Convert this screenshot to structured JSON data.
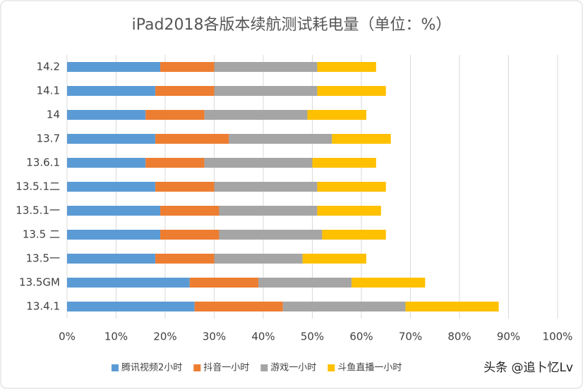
{
  "chart_data": {
    "type": "stacked-bar-horizontal",
    "title": "iPad2018各版本续航测试耗电量（单位：%）",
    "categories": [
      "14.2",
      "14.1",
      "14",
      "13.7",
      "13.6.1",
      "13.5.1二",
      "13.5.1一",
      "13.5 二",
      "13.5一",
      "13.5GM",
      "13.4.1"
    ],
    "series": [
      {
        "name": "腾讯视频2小时",
        "color": "#5b9bd5",
        "values": [
          19,
          18,
          16,
          18,
          16,
          18,
          19,
          19,
          18,
          25,
          26
        ]
      },
      {
        "name": "抖音一小时",
        "color": "#ed7d31",
        "values": [
          11,
          12,
          12,
          15,
          12,
          12,
          12,
          12,
          12,
          14,
          18
        ]
      },
      {
        "name": "游戏一小时",
        "color": "#a5a5a5",
        "values": [
          21,
          21,
          21,
          21,
          22,
          21,
          20,
          21,
          18,
          19,
          25
        ]
      },
      {
        "name": "斗鱼直播一小时",
        "color": "#ffc000",
        "values": [
          12,
          14,
          12,
          12,
          13,
          14,
          13,
          13,
          13,
          15,
          19
        ]
      }
    ],
    "xlim": [
      0,
      100
    ],
    "xticks": [
      {
        "value": 0,
        "label": "0%"
      },
      {
        "value": 10,
        "label": "10%"
      },
      {
        "value": 20,
        "label": "20%"
      },
      {
        "value": 30,
        "label": "30%"
      },
      {
        "value": 40,
        "label": "40%"
      },
      {
        "value": 50,
        "label": "50%"
      },
      {
        "value": 60,
        "label": "60%"
      },
      {
        "value": 70,
        "label": "70%"
      },
      {
        "value": 80,
        "label": "80%"
      },
      {
        "value": 90,
        "label": "90%"
      },
      {
        "value": 100,
        "label": "100%"
      }
    ],
    "grid": true,
    "legend": "bottom",
    "watermark": "头条 @追卜忆Lv"
  }
}
